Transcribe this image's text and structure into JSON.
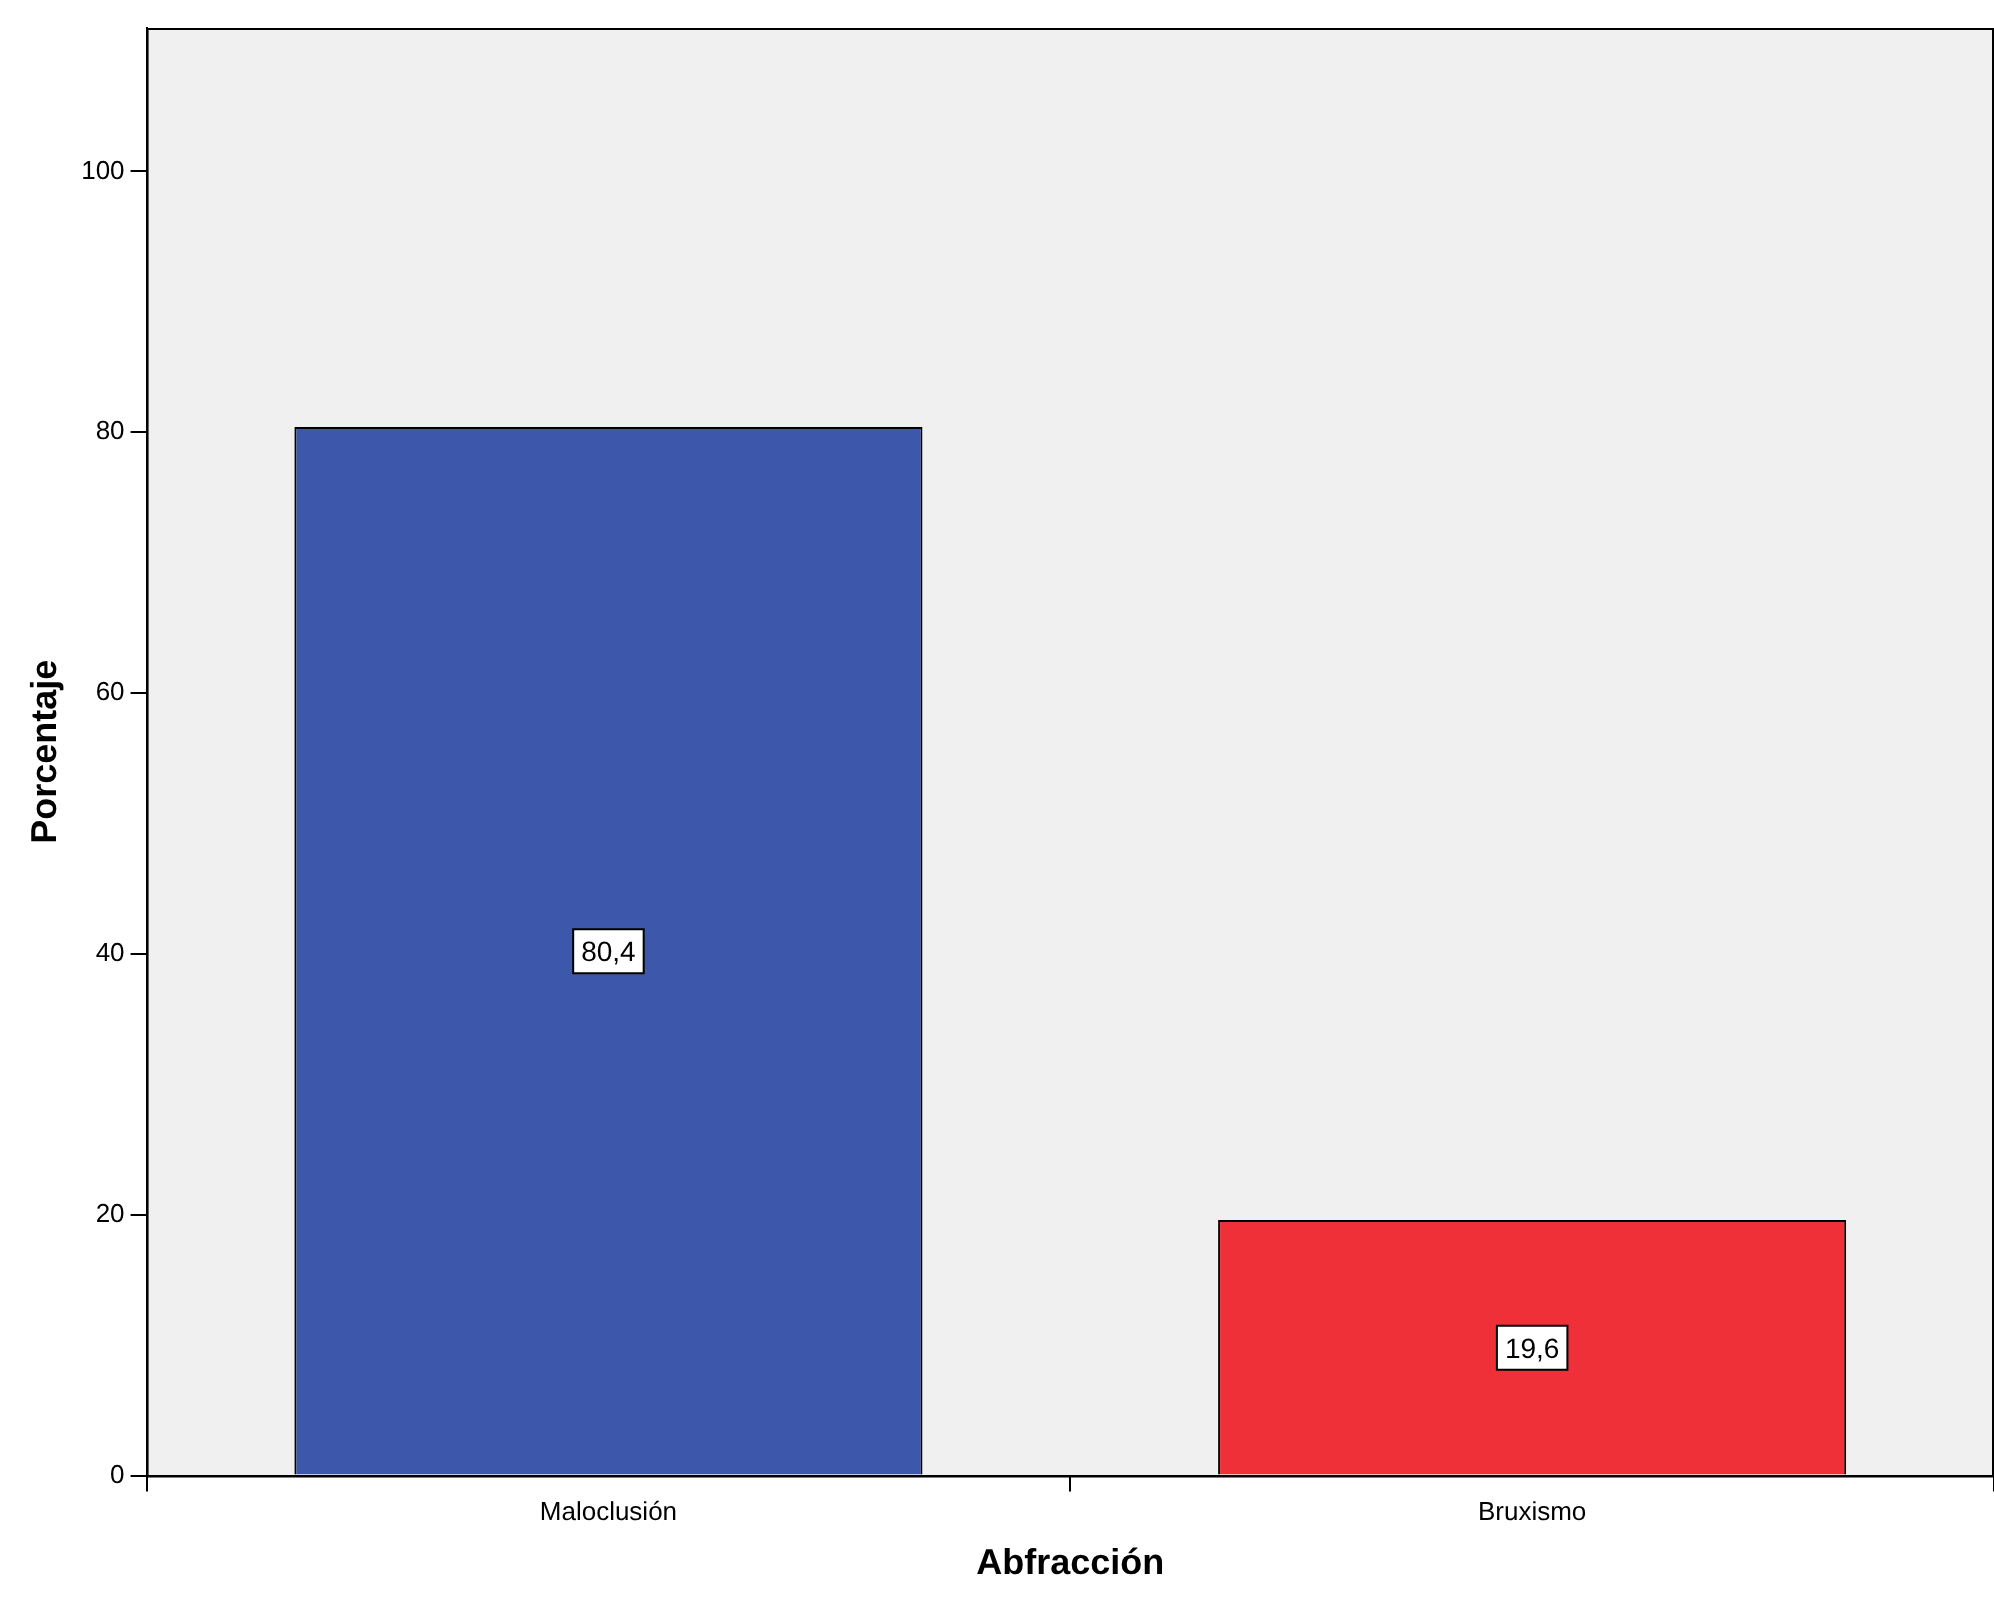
{
  "chart_data": {
    "type": "bar",
    "xlabel": "Abfracción",
    "ylabel": "Porcentaje",
    "categories": [
      "Maloclusión",
      "Bruxismo"
    ],
    "values": [
      80.4,
      19.6
    ],
    "colors": [
      "#3d58aa",
      "#ef3038"
    ],
    "value_labels": [
      "80,4",
      "19,6"
    ],
    "ylim": [
      0,
      111
    ],
    "yticks": [
      0,
      20,
      40,
      60,
      80,
      100
    ],
    "grid": false,
    "legend": false
  }
}
